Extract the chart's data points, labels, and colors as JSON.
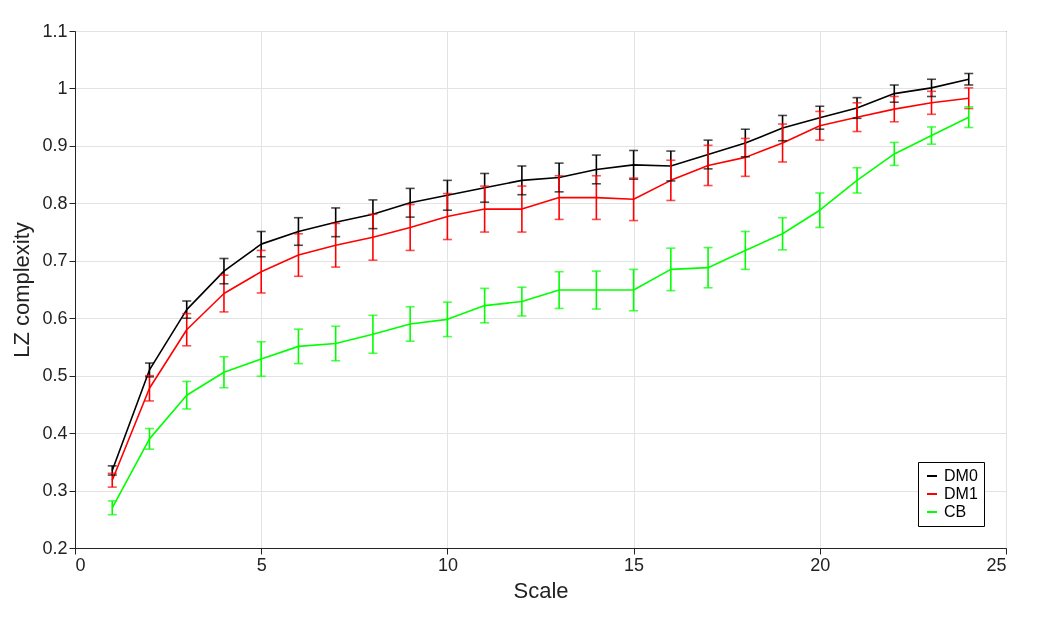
{
  "chart_data": {
    "type": "line",
    "xlabel": "Scale",
    "ylabel": "LZ complexity",
    "x": [
      1,
      2,
      3,
      4,
      5,
      6,
      7,
      8,
      9,
      10,
      11,
      12,
      13,
      14,
      15,
      16,
      17,
      18,
      19,
      20,
      21,
      22,
      23,
      24
    ],
    "series": [
      {
        "name": "DM0",
        "color": "#000000",
        "values": [
          0.335,
          0.51,
          0.615,
          0.682,
          0.729,
          0.751,
          0.767,
          0.781,
          0.801,
          0.814,
          0.827,
          0.84,
          0.845,
          0.859,
          0.867,
          0.865,
          0.885,
          0.905,
          0.931,
          0.949,
          0.966,
          0.991,
          1.001,
          1.016
        ],
        "errors": [
          0.008,
          0.012,
          0.015,
          0.022,
          0.022,
          0.024,
          0.025,
          0.025,
          0.025,
          0.026,
          0.025,
          0.025,
          0.025,
          0.025,
          0.025,
          0.026,
          0.025,
          0.024,
          0.022,
          0.02,
          0.018,
          0.015,
          0.015,
          0.01
        ]
      },
      {
        "name": "DM1",
        "color": "#ff0000",
        "values": [
          0.318,
          0.478,
          0.58,
          0.643,
          0.681,
          0.71,
          0.727,
          0.741,
          0.758,
          0.777,
          0.79,
          0.79,
          0.81,
          0.81,
          0.807,
          0.84,
          0.866,
          0.88,
          0.905,
          0.935,
          0.95,
          0.964,
          0.975,
          0.983
        ],
        "errors": [
          0.012,
          0.022,
          0.028,
          0.032,
          0.037,
          0.037,
          0.038,
          0.04,
          0.04,
          0.04,
          0.04,
          0.04,
          0.038,
          0.038,
          0.037,
          0.035,
          0.035,
          0.033,
          0.033,
          0.025,
          0.025,
          0.022,
          0.02,
          0.018
        ]
      },
      {
        "name": "CB",
        "color": "#00ff00",
        "values": [
          0.27,
          0.39,
          0.466,
          0.506,
          0.529,
          0.551,
          0.556,
          0.572,
          0.59,
          0.598,
          0.622,
          0.629,
          0.649,
          0.649,
          0.649,
          0.685,
          0.688,
          0.718,
          0.747,
          0.788,
          0.84,
          0.886,
          0.918,
          0.95
        ],
        "errors": [
          0.012,
          0.018,
          0.024,
          0.027,
          0.03,
          0.03,
          0.03,
          0.033,
          0.03,
          0.03,
          0.03,
          0.025,
          0.032,
          0.033,
          0.036,
          0.037,
          0.035,
          0.033,
          0.028,
          0.03,
          0.022,
          0.02,
          0.015,
          0.018
        ]
      }
    ],
    "xlim": [
      0,
      25
    ],
    "xticks": [
      0,
      5,
      10,
      15,
      20,
      25
    ],
    "ylim": [
      0.2,
      1.1
    ],
    "yticks": [
      0.2,
      0.3,
      0.4,
      0.5,
      0.6,
      0.7,
      0.8,
      0.9,
      1,
      1.1
    ],
    "grid": true,
    "legend": "bottom right",
    "marker": "none",
    "line_style": "solid"
  }
}
